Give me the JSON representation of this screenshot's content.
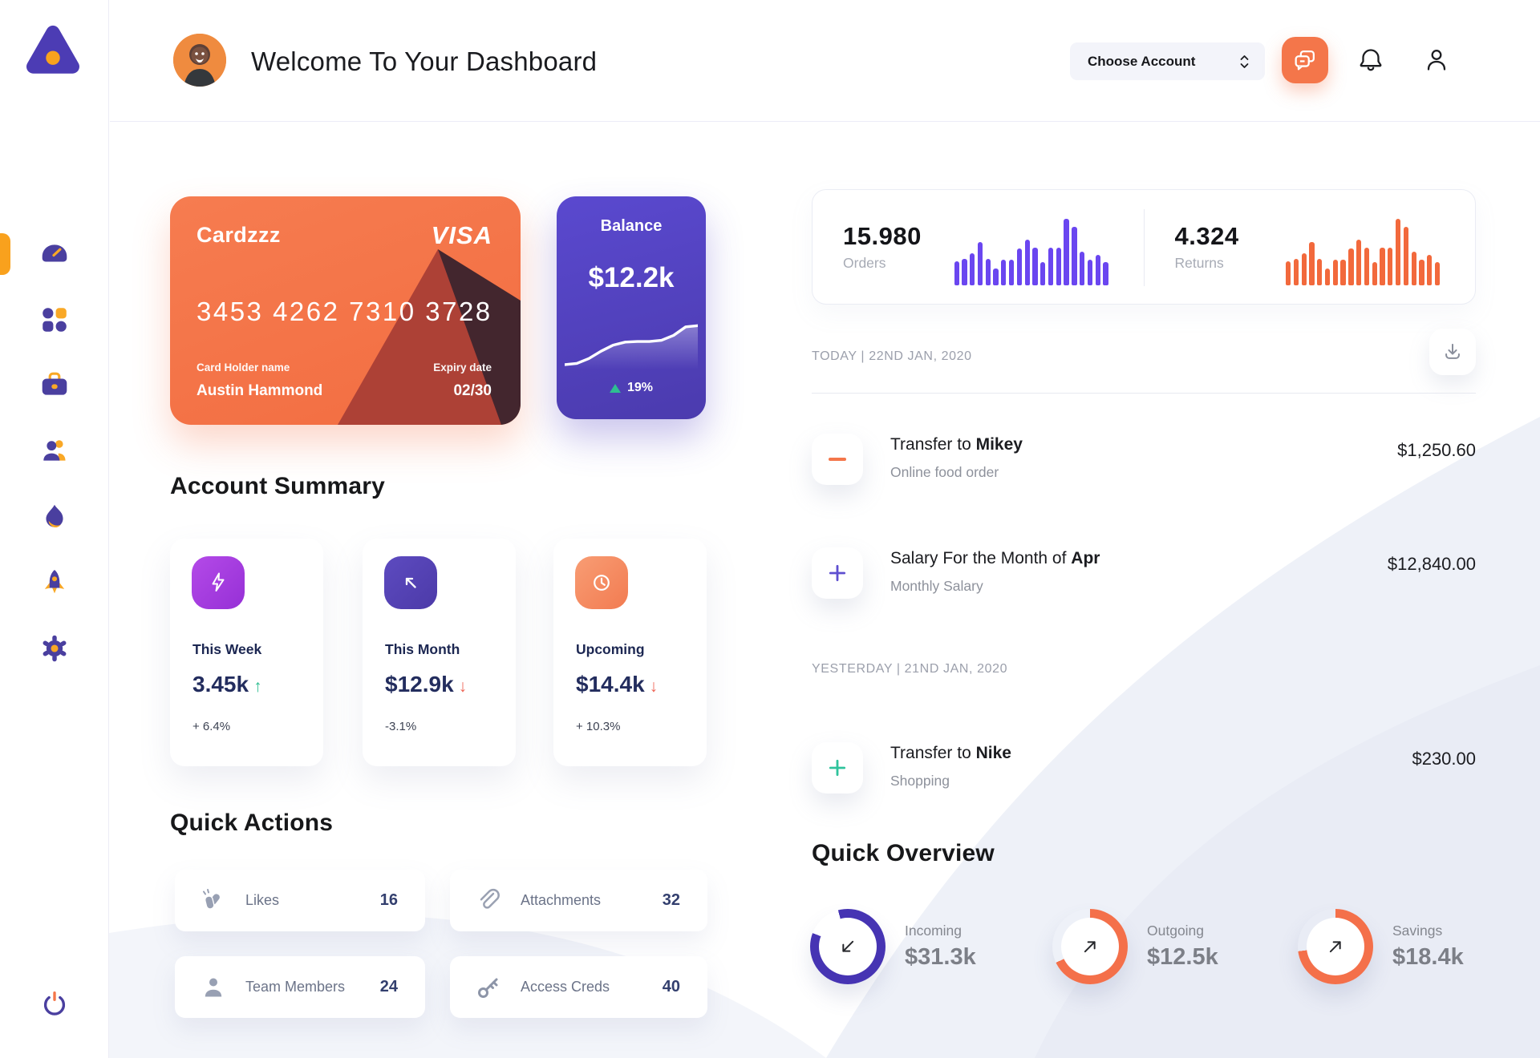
{
  "header": {
    "title": "Welcome To Your Dashboard",
    "account_select_label": "Choose Account"
  },
  "sidebar": {
    "items": [
      {
        "name": "dashboard",
        "icon": "speedometer-icon",
        "active": true
      },
      {
        "name": "apps",
        "icon": "grid-icon",
        "active": false
      },
      {
        "name": "portfolio",
        "icon": "briefcase-icon",
        "active": false
      },
      {
        "name": "team",
        "icon": "users-icon",
        "active": false
      },
      {
        "name": "activity",
        "icon": "flame-icon",
        "active": false
      },
      {
        "name": "boost",
        "icon": "rocket-icon",
        "active": false
      },
      {
        "name": "settings",
        "icon": "gear-icon",
        "active": false
      },
      {
        "name": "logout",
        "icon": "power-icon",
        "active": false
      }
    ]
  },
  "wallet_card": {
    "name": "Cardzzz",
    "brand": "VISA",
    "number": "3453 4262 7310 3728",
    "holder_label": "Card Holder name",
    "holder_name": "Austin Hammond",
    "expiry_label": "Expiry date",
    "expiry": "02/30"
  },
  "balance_card": {
    "label": "Balance",
    "value": "$12.2k",
    "change": "19%"
  },
  "account_summary": {
    "heading": "Account Summary",
    "cards": [
      {
        "label": "This Week",
        "value": "3.45k",
        "arrow": "↑",
        "direction": "up",
        "delta": "+ 6.4%",
        "icon": "lightning-icon",
        "tile_color": "#a43be0"
      },
      {
        "label": "This Month",
        "value": "$12.9k",
        "arrow": "↓",
        "direction": "down",
        "delta": "-3.1%",
        "icon": "arrow-up-left-icon",
        "tile_color": "#5746b8"
      },
      {
        "label": "Upcoming",
        "value": "$14.4k",
        "arrow": "↓",
        "direction": "down",
        "delta": "+ 10.3%",
        "icon": "clock-icon",
        "tile_color": "#f58a68"
      }
    ]
  },
  "quick_actions": {
    "heading": "Quick Actions",
    "items": [
      {
        "label": "Likes",
        "value": "16",
        "icon": "clap-icon"
      },
      {
        "label": "Attachments",
        "value": "32",
        "icon": "paperclip-icon"
      },
      {
        "label": "Team Members",
        "value": "24",
        "icon": "person-icon"
      },
      {
        "label": "Access Creds",
        "value": "40",
        "icon": "key-icon"
      }
    ]
  },
  "stats": {
    "orders": {
      "value": "15.980",
      "label": "Orders"
    },
    "returns": {
      "value": "4.324",
      "label": "Returns"
    }
  },
  "transactions": {
    "today_label": "TODAY | 22ND JAN, 2020",
    "yesterday_label": "YESTERDAY | 21ND JAN, 2020",
    "rows": [
      {
        "title_prefix": "Transfer to ",
        "title_bold": "Mikey",
        "subtitle": "Online food order",
        "amount": "$1,250.60",
        "sign": "minus",
        "accent": "#f4764a"
      },
      {
        "title_prefix": "Salary For the Month of ",
        "title_bold": "Apr",
        "subtitle": "Monthly Salary",
        "amount": "$12,840.00",
        "sign": "plus",
        "accent": "#5e4fd0"
      },
      {
        "title_prefix": "Transfer to ",
        "title_bold": "Nike",
        "subtitle": "Shopping",
        "amount": "$230.00",
        "sign": "plus",
        "accent": "#2fc39c"
      }
    ]
  },
  "quick_overview": {
    "heading": "Quick Overview",
    "rings": [
      {
        "label": "Incoming",
        "value": "$31.3k",
        "color": "#4634b3",
        "percent": 85,
        "from": 345,
        "arrow": "down-left"
      },
      {
        "label": "Outgoing",
        "value": "$12.5k",
        "color": "#f4704a",
        "percent": 68,
        "from": 0,
        "arrow": "up-right"
      },
      {
        "label": "Savings",
        "value": "$18.4k",
        "color": "#f4704a",
        "percent": 73,
        "from": 0,
        "arrow": "up-right"
      }
    ]
  },
  "chart_data": [
    {
      "type": "bar",
      "title": "Orders activity",
      "values": [
        35,
        38,
        47,
        63,
        38,
        25,
        37,
        37,
        53,
        66,
        55,
        34,
        55,
        55,
        97,
        85,
        49,
        37,
        44,
        34
      ],
      "color": "#6a46f0",
      "ylim": [
        0,
        100
      ],
      "grid": false
    },
    {
      "type": "bar",
      "title": "Returns activity",
      "values": [
        35,
        38,
        47,
        63,
        38,
        25,
        37,
        37,
        53,
        66,
        55,
        34,
        55,
        55,
        97,
        85,
        49,
        37,
        44,
        34
      ],
      "color": "#f2693c",
      "ylim": [
        0,
        100
      ],
      "grid": false
    },
    {
      "type": "line",
      "title": "Balance trend",
      "values": [
        8,
        10,
        18,
        30,
        40,
        45,
        46,
        46,
        48,
        56,
        70,
        72
      ],
      "color": "#ffffff"
    },
    {
      "type": "pie",
      "title": "Quick Overview rings",
      "slices": [
        {
          "label": "Incoming",
          "value": "$31.3k",
          "percent": 85
        },
        {
          "label": "Outgoing",
          "value": "$12.5k",
          "percent": 68
        },
        {
          "label": "Savings",
          "value": "$18.4k",
          "percent": 73
        }
      ]
    }
  ]
}
